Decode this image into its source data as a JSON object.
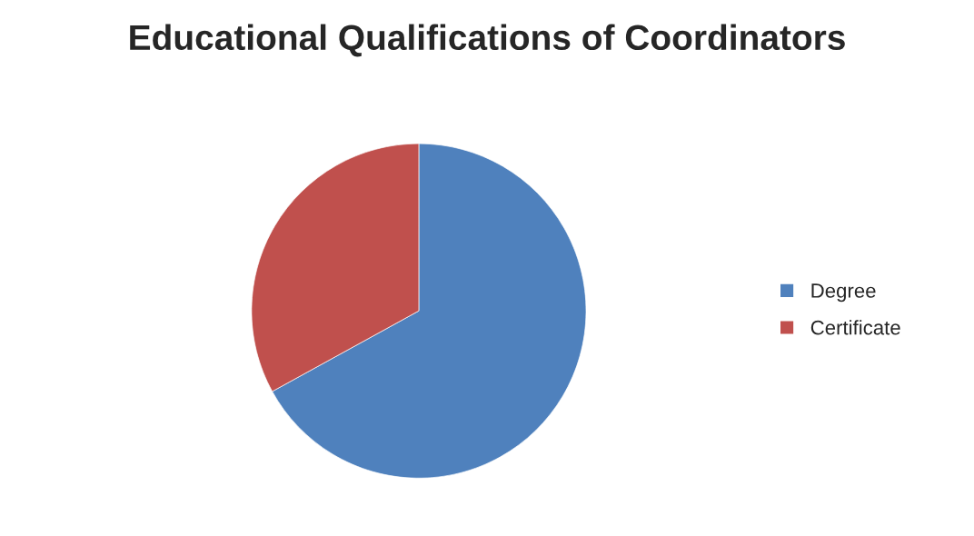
{
  "chart_data": {
    "type": "pie",
    "title": "Educational Qualifications of Coordinators",
    "categories": [
      "Degree",
      "Certificate"
    ],
    "values": [
      67,
      33
    ],
    "colors": [
      "#4f81bd",
      "#c0504d"
    ],
    "legend": "right"
  }
}
